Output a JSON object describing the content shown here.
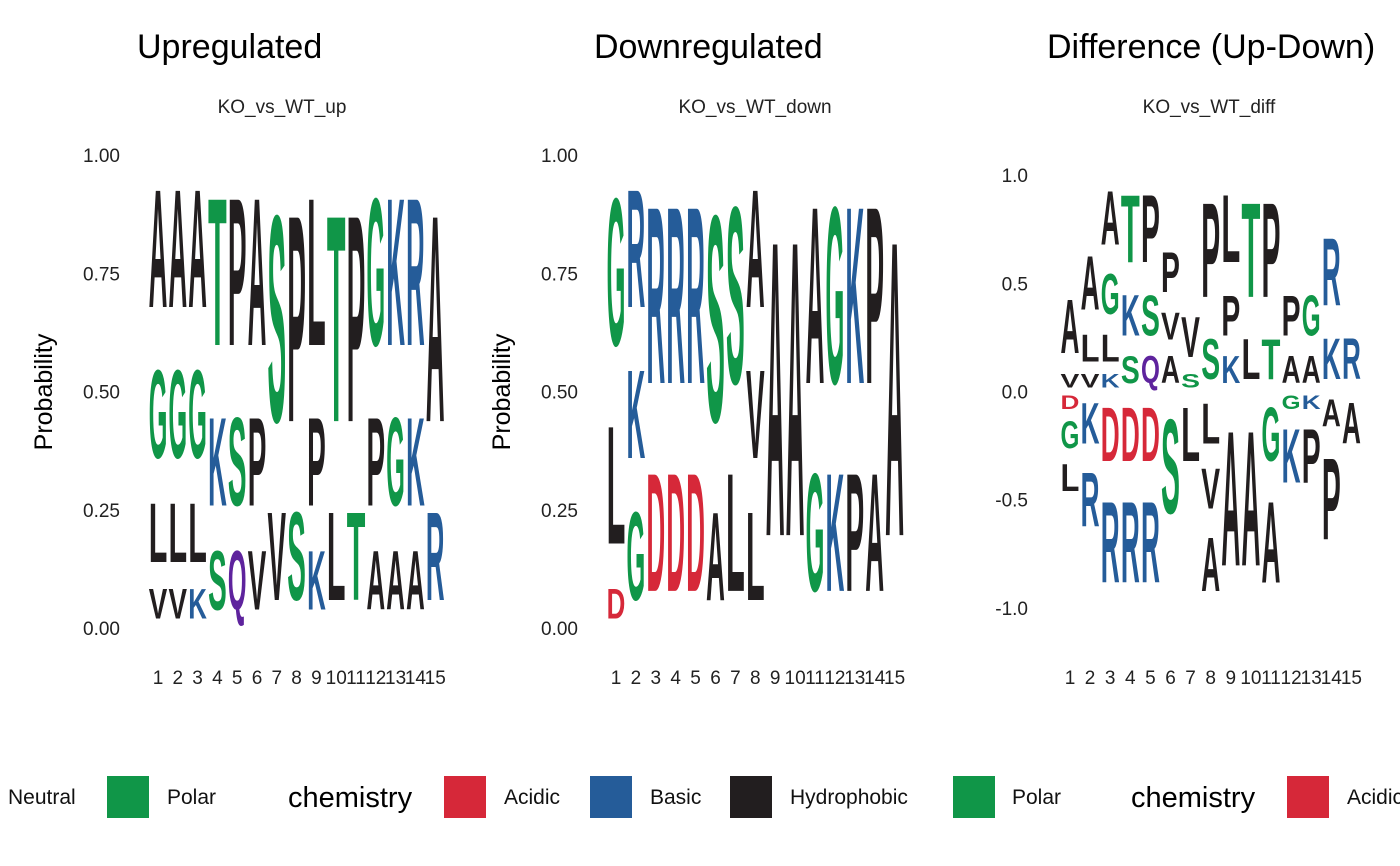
{
  "colors": {
    "Polar": "#109648",
    "Neutral": "#5E239D",
    "Basic": "#255C99",
    "Acidic": "#D62839",
    "Hydrophobic": "#221E1F"
  },
  "chemistry": {
    "G": "Polar",
    "S": "Polar",
    "T": "Polar",
    "Y": "Polar",
    "C": "Polar",
    "Q": "Neutral",
    "N": "Neutral",
    "K": "Basic",
    "R": "Basic",
    "H": "Basic",
    "D": "Acidic",
    "E": "Acidic",
    "A": "Hydrophobic",
    "V": "Hydrophobic",
    "L": "Hydrophobic",
    "I": "Hydrophobic",
    "P": "Hydrophobic",
    "W": "Hydrophobic",
    "F": "Hydrophobic",
    "M": "Hydrophobic"
  },
  "chart_data": [
    {
      "type": "bar",
      "title": "Upregulated",
      "subtitle": "KO_vs_WT_up",
      "ylabel": "Probability",
      "ylim": [
        0,
        1
      ],
      "yticks": [
        "0.00",
        "0.25",
        "0.50",
        "0.75",
        "1.00"
      ],
      "ytick_values": [
        0,
        0.25,
        0.5,
        0.75,
        1
      ],
      "categories": [
        "1",
        "2",
        "3",
        "4",
        "5",
        "6",
        "7",
        "8",
        "9",
        "10",
        "11",
        "12",
        "13",
        "14",
        "15"
      ],
      "stacks": [
        [
          [
            "V",
            0.1
          ],
          [
            "L",
            0.2
          ],
          [
            "G",
            0.3
          ],
          [
            "A",
            0.4
          ]
        ],
        [
          [
            "V",
            0.1
          ],
          [
            "L",
            0.2
          ],
          [
            "G",
            0.3
          ],
          [
            "A",
            0.4
          ]
        ],
        [
          [
            "K",
            0.1
          ],
          [
            "L",
            0.2
          ],
          [
            "G",
            0.3
          ],
          [
            "A",
            0.4
          ]
        ],
        [
          [
            "S",
            0.2
          ],
          [
            "K",
            0.3
          ],
          [
            "T",
            0.5
          ]
        ],
        [
          [
            "Q",
            0.2
          ],
          [
            "S",
            0.3
          ],
          [
            "P",
            0.5
          ]
        ],
        [
          [
            "V",
            0.2
          ],
          [
            "P",
            0.3
          ],
          [
            "A",
            0.5
          ]
        ],
        [
          [
            "V",
            0.3
          ],
          [
            "S",
            0.7
          ]
        ],
        [
          [
            "S",
            0.3
          ],
          [
            "P",
            0.7
          ]
        ],
        [
          [
            "K",
            0.2
          ],
          [
            "P",
            0.3
          ],
          [
            "L",
            0.5
          ]
        ],
        [
          [
            "L",
            0.3
          ],
          [
            "T",
            0.7
          ]
        ],
        [
          [
            "T",
            0.3
          ],
          [
            "P",
            0.7
          ]
        ],
        [
          [
            "A",
            0.2
          ],
          [
            "P",
            0.3
          ],
          [
            "G",
            0.5
          ]
        ],
        [
          [
            "A",
            0.2
          ],
          [
            "G",
            0.3
          ],
          [
            "K",
            0.5
          ]
        ],
        [
          [
            "A",
            0.2
          ],
          [
            "K",
            0.3
          ],
          [
            "R",
            0.5
          ]
        ],
        [
          [
            "R",
            0.3
          ],
          [
            "A",
            0.7
          ]
        ]
      ]
    },
    {
      "type": "bar",
      "title": "Downregulated",
      "subtitle": "KO_vs_WT_down",
      "ylabel": "Probability",
      "ylim": [
        0,
        1
      ],
      "yticks": [
        "0.00",
        "0.25",
        "0.50",
        "0.75",
        "1.00"
      ],
      "ytick_values": [
        0,
        0.25,
        0.5,
        0.75,
        1
      ],
      "categories": [
        "1",
        "2",
        "3",
        "4",
        "5",
        "6",
        "7",
        "8",
        "9",
        "10",
        "11",
        "12",
        "13",
        "14",
        "15"
      ],
      "stacks": [
        [
          [
            "D",
            0.1
          ],
          [
            "L",
            0.4
          ],
          [
            "G",
            0.5
          ]
        ],
        [
          [
            "G",
            0.3
          ],
          [
            "K",
            0.3
          ],
          [
            "R",
            0.4
          ]
        ],
        [
          [
            "D",
            0.4
          ],
          [
            "R",
            0.6
          ]
        ],
        [
          [
            "D",
            0.4
          ],
          [
            "R",
            0.6
          ]
        ],
        [
          [
            "D",
            0.4
          ],
          [
            "R",
            0.6
          ]
        ],
        [
          [
            "A",
            0.3
          ],
          [
            "S",
            0.7
          ]
        ],
        [
          [
            "L",
            0.4
          ],
          [
            "S",
            0.6
          ]
        ],
        [
          [
            "L",
            0.3
          ],
          [
            "V",
            0.3
          ],
          [
            "A",
            0.4
          ]
        ],
        [
          [
            "A",
            1.0
          ]
        ],
        [
          [
            "A",
            1.0
          ]
        ],
        [
          [
            "G",
            0.4
          ],
          [
            "A",
            0.6
          ]
        ],
        [
          [
            "K",
            0.4
          ],
          [
            "G",
            0.6
          ]
        ],
        [
          [
            "P",
            0.4
          ],
          [
            "K",
            0.6
          ]
        ],
        [
          [
            "A",
            0.4
          ],
          [
            "P",
            0.6
          ]
        ],
        [
          [
            "A",
            1.0
          ]
        ]
      ]
    },
    {
      "type": "bar",
      "title": "Difference (Up-Down)",
      "subtitle": "KO_vs_WT_diff",
      "ylabel": "",
      "ylim": [
        -1.07,
        1.07
      ],
      "yticks": [
        "-1.0",
        "-0.5",
        "0.0",
        "0.5",
        "1.0"
      ],
      "ytick_values": [
        -1,
        -0.5,
        0,
        0.5,
        1
      ],
      "categories": [
        "1",
        "2",
        "3",
        "4",
        "5",
        "6",
        "7",
        "8",
        "9",
        "10",
        "11",
        "12",
        "13",
        "14",
        "15"
      ],
      "stacks": [
        [
          [
            "V",
            0.1
          ],
          [
            "A",
            0.4
          ],
          [
            "D",
            -0.1
          ],
          [
            "G",
            -0.2
          ],
          [
            "L",
            -0.2
          ]
        ],
        [
          [
            "V",
            0.1
          ],
          [
            "L",
            0.2
          ],
          [
            "A",
            0.4
          ],
          [
            "K",
            -0.3
          ],
          [
            "R",
            -0.4
          ]
        ],
        [
          [
            "K",
            0.1
          ],
          [
            "L",
            0.2
          ],
          [
            "G",
            0.3
          ],
          [
            "A",
            0.4
          ],
          [
            "D",
            -0.4
          ],
          [
            "R",
            -0.6
          ]
        ],
        [
          [
            "S",
            0.2
          ],
          [
            "K",
            0.3
          ],
          [
            "T",
            0.5
          ],
          [
            "D",
            -0.4
          ],
          [
            "R",
            -0.6
          ]
        ],
        [
          [
            "Q",
            0.2
          ],
          [
            "S",
            0.3
          ],
          [
            "P",
            0.5
          ],
          [
            "D",
            -0.4
          ],
          [
            "R",
            -0.6
          ]
        ],
        [
          [
            "A",
            0.2
          ],
          [
            "V",
            0.2
          ],
          [
            "P",
            0.3
          ],
          [
            "S",
            -0.7
          ]
        ],
        [
          [
            "S",
            0.1
          ],
          [
            "V",
            0.3
          ],
          [
            "L",
            -0.4
          ]
        ],
        [
          [
            "S",
            0.3
          ],
          [
            "P",
            0.7
          ],
          [
            "L",
            -0.3
          ],
          [
            "V",
            -0.3
          ],
          [
            "A",
            -0.4
          ]
        ],
        [
          [
            "K",
            0.2
          ],
          [
            "P",
            0.3
          ],
          [
            "L",
            0.5
          ],
          [
            "A",
            -1.0
          ]
        ],
        [
          [
            "L",
            0.3
          ],
          [
            "T",
            0.7
          ],
          [
            "A",
            -1.0
          ]
        ],
        [
          [
            "T",
            0.3
          ],
          [
            "P",
            0.7
          ],
          [
            "G",
            -0.4
          ],
          [
            "A",
            -0.6
          ]
        ],
        [
          [
            "A",
            0.2
          ],
          [
            "P",
            0.3
          ],
          [
            "G",
            -0.1
          ],
          [
            "K",
            -0.4
          ]
        ],
        [
          [
            "A",
            0.2
          ],
          [
            "G",
            0.3
          ],
          [
            "K",
            -0.1
          ],
          [
            "P",
            -0.4
          ]
        ],
        [
          [
            "K",
            0.3
          ],
          [
            "R",
            0.5
          ],
          [
            "A",
            -0.2
          ],
          [
            "P",
            -0.6
          ]
        ],
        [
          [
            "R",
            0.3
          ],
          [
            "A",
            -0.3
          ]
        ]
      ]
    }
  ],
  "legends": [
    {
      "title": "",
      "items": [
        {
          "label": "Neutral",
          "swatch": ""
        },
        {
          "label": "Polar",
          "swatch": "#109648"
        }
      ]
    },
    {
      "title": "chemistry",
      "items": [
        {
          "label": "Acidic",
          "swatch": "#D62839"
        },
        {
          "label": "Basic",
          "swatch": "#255C99"
        },
        {
          "label": "Hydrophobic",
          "swatch": "#221E1F"
        },
        {
          "label": "Polar",
          "swatch": "#109648"
        }
      ]
    },
    {
      "title": "chemistry",
      "items": [
        {
          "label": "Acidic",
          "swatch": "#D62839"
        }
      ]
    }
  ]
}
